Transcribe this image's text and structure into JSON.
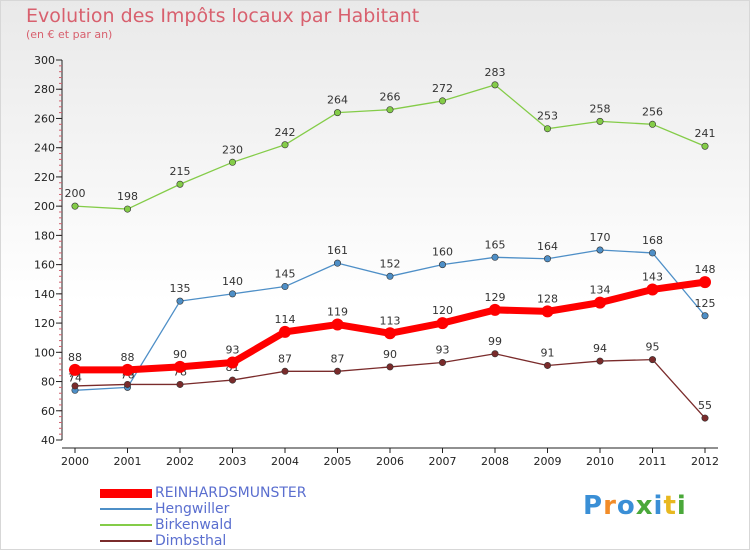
{
  "title": "Evolution des Impôts locaux par Habitant",
  "subtitle": "(en € et par an)",
  "logo_text": "Proxiti",
  "chart_data": {
    "type": "line",
    "x": [
      "2000",
      "2001",
      "2002",
      "2003",
      "2004",
      "2005",
      "2006",
      "2007",
      "2008",
      "2009",
      "2010",
      "2011",
      "2012"
    ],
    "ylim": [
      40,
      300
    ],
    "yticks": [
      40,
      60,
      80,
      100,
      120,
      140,
      160,
      180,
      200,
      220,
      240,
      260,
      280,
      300
    ],
    "grid": false,
    "legend_placement": "bottom-left",
    "series": [
      {
        "name": "REINHARDSMUNSTER",
        "color": "#ff0000",
        "values": [
          88,
          88,
          90,
          93,
          114,
          119,
          113,
          120,
          129,
          128,
          134,
          143,
          148
        ]
      },
      {
        "name": "Hengwiller",
        "color": "#4e8fc7",
        "values": [
          74,
          76,
          135,
          140,
          145,
          161,
          152,
          160,
          165,
          164,
          170,
          168,
          125
        ]
      },
      {
        "name": "Birkenwald",
        "color": "#84cc48",
        "values": [
          200,
          198,
          215,
          230,
          242,
          264,
          266,
          272,
          283,
          253,
          258,
          256,
          241
        ]
      },
      {
        "name": "Dimbsthal",
        "color": "#7a2b2b",
        "values": [
          77,
          78,
          78,
          81,
          87,
          87,
          90,
          93,
          99,
          91,
          94,
          95,
          55
        ]
      }
    ]
  }
}
